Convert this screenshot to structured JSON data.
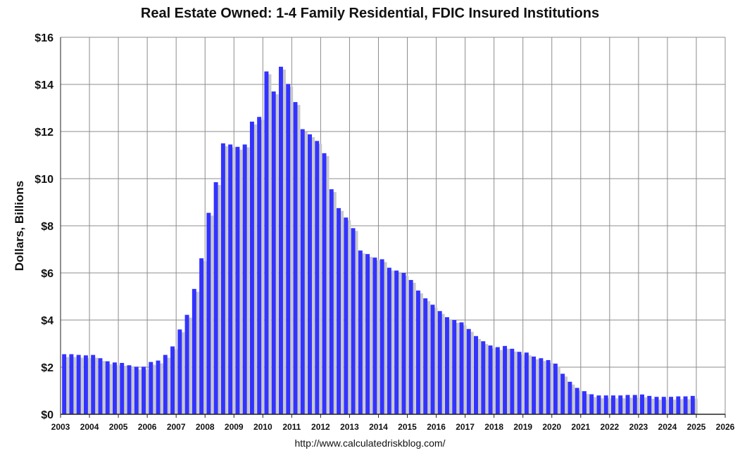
{
  "chart_data": {
    "type": "bar",
    "title": "Real Estate Owned: 1-4 Family Residential, FDIC Insured Institutions",
    "ylabel": "Dollars, Billions",
    "xlabel": "",
    "source": "http://www.calculatedriskblog.com/",
    "ylim": [
      0,
      16
    ],
    "y_ticks": [
      "$0",
      "$2",
      "$4",
      "$6",
      "$8",
      "$10",
      "$12",
      "$14",
      "$16"
    ],
    "x_ticks": [
      "2003",
      "2004",
      "2005",
      "2006",
      "2007",
      "2008",
      "2009",
      "2010",
      "2011",
      "2012",
      "2013",
      "2014",
      "2015",
      "2016",
      "2017",
      "2018",
      "2019",
      "2020",
      "2021",
      "2022",
      "2023",
      "2024",
      "2025",
      "2026"
    ],
    "xlim": [
      2003,
      2026
    ],
    "grid": true,
    "bar_color": "#3333ff",
    "shadow_color": "#c8c8c8",
    "series": [
      {
        "start": "2003 Q1",
        "frequency": "quarterly",
        "values": [
          2.55,
          2.55,
          2.52,
          2.5,
          2.52,
          2.38,
          2.25,
          2.2,
          2.18,
          2.08,
          2.02,
          2.02,
          2.22,
          2.28,
          2.52,
          2.88,
          3.6,
          4.22,
          5.32,
          6.62,
          8.55,
          9.85,
          11.5,
          11.45,
          11.35,
          11.45,
          12.42,
          12.62,
          14.55,
          13.7,
          14.75,
          14.02,
          13.25,
          12.1,
          11.88,
          11.6,
          11.08,
          9.55,
          8.75,
          8.35,
          7.9,
          6.95,
          6.8,
          6.65,
          6.58,
          6.22,
          6.1,
          6.0,
          5.7,
          5.25,
          4.92,
          4.65,
          4.38,
          4.12,
          4.0,
          3.9,
          3.62,
          3.32,
          3.1,
          2.92,
          2.85,
          2.9,
          2.78,
          2.65,
          2.62,
          2.45,
          2.38,
          2.3,
          2.15,
          1.72,
          1.38,
          1.12,
          0.98,
          0.85,
          0.8,
          0.8,
          0.8,
          0.8,
          0.82,
          0.82,
          0.84,
          0.78,
          0.74,
          0.74,
          0.74,
          0.76,
          0.76,
          0.78
        ]
      }
    ]
  }
}
